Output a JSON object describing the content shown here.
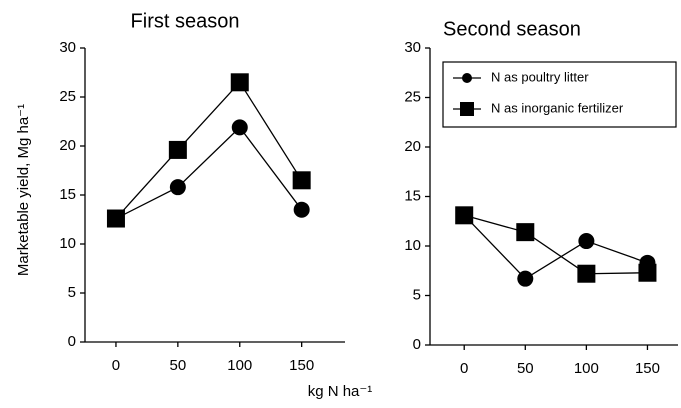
{
  "ylabel": "Marketable yield, Mg ha⁻¹",
  "xlabel": "kg N ha⁻¹",
  "chart_data": [
    {
      "type": "line",
      "title": "First season",
      "x": [
        0,
        50,
        100,
        150
      ],
      "xlim": [
        -25,
        185
      ],
      "xticks": [
        0,
        50,
        100,
        150
      ],
      "ylim": [
        0,
        30
      ],
      "yticks": [
        0,
        5,
        10,
        15,
        20,
        25,
        30
      ],
      "series": [
        {
          "marker": "circle",
          "color": "#000000",
          "values": [
            12.6,
            15.8,
            21.9,
            13.5
          ]
        },
        {
          "marker": "square",
          "color": "#000000",
          "values": [
            12.6,
            19.6,
            26.5,
            16.5
          ]
        }
      ]
    },
    {
      "type": "line",
      "title": "Second season",
      "legend": "upper right",
      "x": [
        0,
        50,
        100,
        150
      ],
      "xlim": [
        -28,
        175
      ],
      "xticks": [
        0,
        50,
        100,
        150
      ],
      "ylim": [
        0,
        30
      ],
      "yticks": [
        0,
        5,
        10,
        15,
        20,
        25,
        30
      ],
      "series": [
        {
          "name": "N as poultry litter",
          "marker": "circle",
          "color": "#000000",
          "values": [
            13.1,
            6.7,
            10.5,
            8.3
          ]
        },
        {
          "name": "N as inorganic fertilizer",
          "marker": "square",
          "color": "#000000",
          "values": [
            13.1,
            11.4,
            7.2,
            7.3
          ]
        }
      ]
    }
  ]
}
